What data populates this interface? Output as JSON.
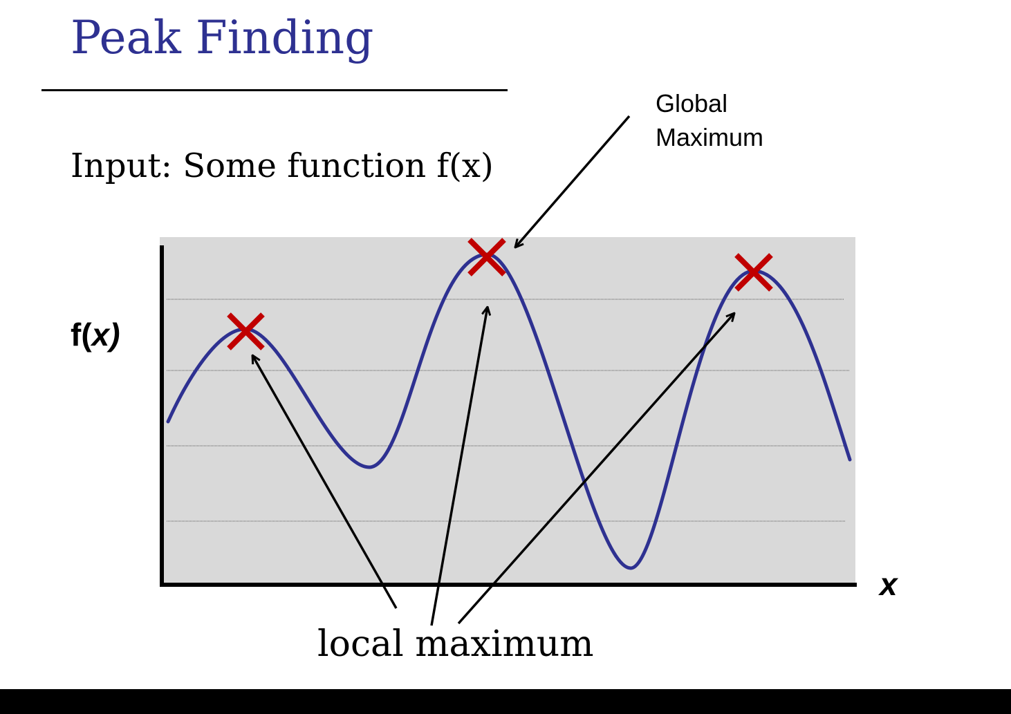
{
  "slide": {
    "title": "Peak Finding",
    "subtitle": "Input: Some function f(x)"
  },
  "figure": {
    "y_axis_label_prefix": "f(",
    "y_axis_label_var": "x",
    "y_axis_label_suffix": ")",
    "x_axis_label": "x",
    "global_max_label_line1": "Global",
    "global_max_label_line2": "Maximum",
    "local_max_label": "local maximum"
  },
  "colors": {
    "title": "#2e3191",
    "curve": "#2e3191",
    "marker": "#c00000",
    "plot_background": "#d9d9d9"
  }
}
